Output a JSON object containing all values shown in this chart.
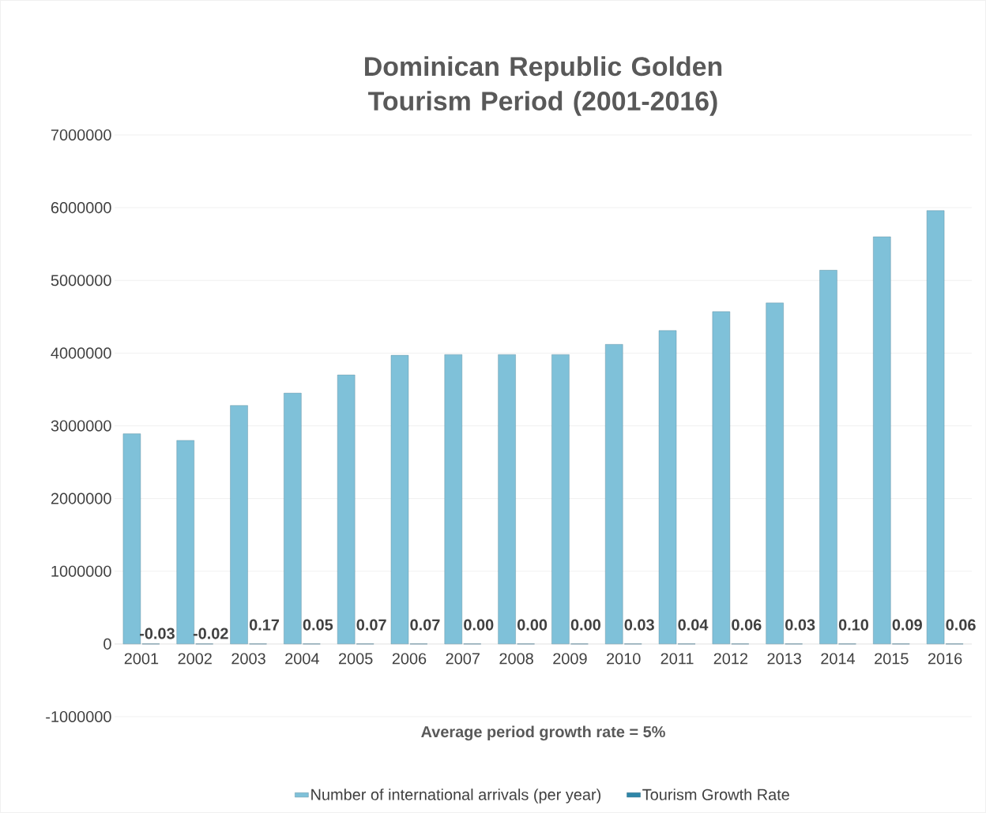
{
  "chart_data": {
    "type": "bar",
    "title": "Dominican Republic Golden Tourism Period (2001-2016)",
    "xlabel": "Average period growth rate = 5%",
    "categories": [
      "2001",
      "2002",
      "2003",
      "2004",
      "2005",
      "2006",
      "2007",
      "2008",
      "2009",
      "2010",
      "2011",
      "2012",
      "2013",
      "2014",
      "2015",
      "2016"
    ],
    "series": [
      {
        "name": "Number of international arrivals (per year)",
        "color": "#7fc1d9",
        "values": [
          2890000,
          2800000,
          3280000,
          3450000,
          3700000,
          3970000,
          3980000,
          3980000,
          3980000,
          4120000,
          4310000,
          4570000,
          4690000,
          5140000,
          5600000,
          5960000
        ]
      },
      {
        "name": "Tourism Growth Rate",
        "color": "#2e86a8",
        "values": [
          -0.03,
          -0.02,
          0.17,
          0.05,
          0.07,
          0.07,
          0.0,
          0.0,
          0.0,
          0.03,
          0.04,
          0.06,
          0.03,
          0.1,
          0.09,
          0.06
        ],
        "value_labels": [
          "-0.03",
          "-0.02",
          "0.17",
          "0.05",
          "0.07",
          "0.07",
          "0.00",
          "0.00",
          "0.00",
          "0.03",
          "0.04",
          "0.06",
          "0.03",
          "0.10",
          "0.09",
          "0.06"
        ]
      }
    ],
    "ylim": [
      -1000000,
      7000000
    ],
    "yticks": [
      -1000000,
      0,
      1000000,
      2000000,
      3000000,
      4000000,
      5000000,
      6000000,
      7000000
    ],
    "grid": "y",
    "legend": "bottom"
  }
}
